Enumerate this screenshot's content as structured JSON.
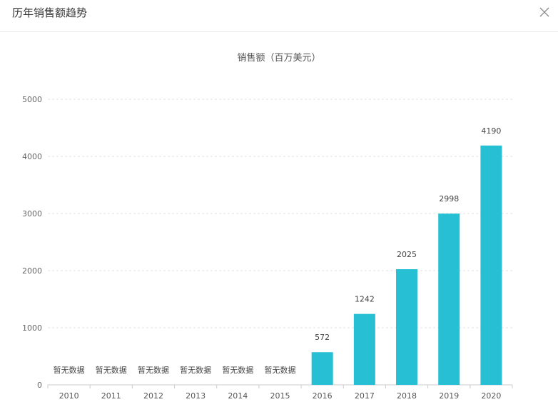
{
  "dialog": {
    "title": "历年销售额趋势",
    "close_icon": "close-icon"
  },
  "chart_data": {
    "type": "bar",
    "title": "销售额（百万美元）",
    "xlabel": "",
    "ylabel": "",
    "categories": [
      "2010",
      "2011",
      "2012",
      "2013",
      "2014",
      "2015",
      "2016",
      "2017",
      "2018",
      "2019",
      "2020"
    ],
    "values": [
      null,
      null,
      null,
      null,
      null,
      null,
      572,
      1242,
      2025,
      2998,
      4190
    ],
    "no_data_label": "暂无数据",
    "ylim": [
      0,
      5000
    ],
    "yticks": [
      0,
      1000,
      2000,
      3000,
      4000,
      5000
    ],
    "grid": true,
    "bar_color": "#26bfd4"
  }
}
